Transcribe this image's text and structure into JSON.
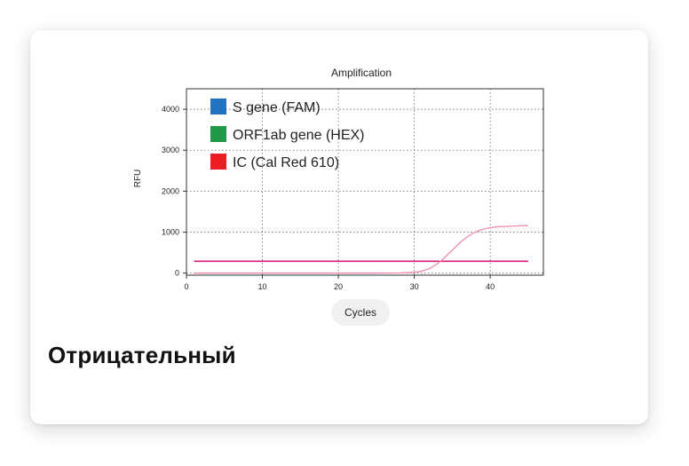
{
  "card": {
    "result_label": "Отрицательный"
  },
  "chart_data": {
    "type": "line",
    "title": "Amplification",
    "xlabel": "Cycles",
    "ylabel": "RFU",
    "xlim": [
      0,
      47
    ],
    "ylim": [
      -50,
      4500
    ],
    "x_ticks": [
      0,
      10,
      20,
      30,
      40
    ],
    "y_ticks": [
      0,
      1000,
      2000,
      3000,
      4000
    ],
    "grid": true,
    "legend_position": "top-left",
    "legend": [
      {
        "label": "S gene (FAM)",
        "color": "#1f73c2"
      },
      {
        "label": "ORF1ab gene (HEX)",
        "color": "#1f9a4b"
      },
      {
        "label": "IC (Cal Red 610)",
        "color": "#ee1c25"
      }
    ],
    "series": [
      {
        "name": "IC (Cal Red 610)",
        "color": "#f08aa8",
        "x": [
          1,
          5,
          10,
          15,
          20,
          25,
          28,
          30,
          31,
          32,
          33,
          34,
          35,
          36,
          37,
          38,
          39,
          40,
          41,
          42,
          43,
          44,
          45
        ],
        "y": [
          0,
          0,
          0,
          0,
          0,
          0,
          5,
          20,
          50,
          110,
          220,
          380,
          560,
          740,
          890,
          1000,
          1070,
          1110,
          1130,
          1140,
          1150,
          1155,
          1160
        ]
      }
    ],
    "threshold": {
      "value": 290,
      "color": "#d81b7a"
    }
  }
}
